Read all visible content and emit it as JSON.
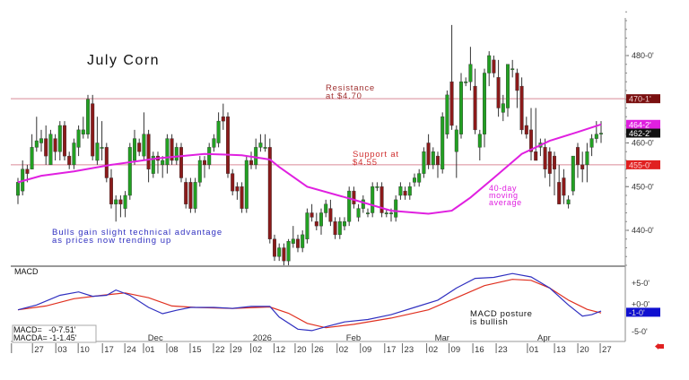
{
  "chart_data": {
    "type": "candlestick",
    "title": "July Corn",
    "ylim": [
      429,
      493
    ],
    "y_ticks": [
      {
        "v": 480,
        "label": "480-0'"
      },
      {
        "v": 460,
        "label": "460-0'"
      },
      {
        "v": 450,
        "label": "450-0'"
      },
      {
        "v": 440,
        "label": "440-0'"
      }
    ],
    "price_flags": [
      {
        "v": 470.125,
        "label": "470-1'",
        "color": "#7a1010",
        "text": "#f0d0d0"
      },
      {
        "v": 464.25,
        "label": "464-2'",
        "color": "#e020e0",
        "text": "#ffffff"
      },
      {
        "v": 462.25,
        "label": "462-2'",
        "color": "#111111",
        "text": "#ffffff"
      },
      {
        "v": 455,
        "label": "455-0'",
        "color": "#e02020",
        "text": "#ffd0d0"
      }
    ],
    "hlines": [
      {
        "v": 470.125,
        "color": "#d98a98"
      },
      {
        "v": 455,
        "color": "#d98a98"
      }
    ],
    "ohlc": [
      [
        448,
        452,
        446,
        451
      ],
      [
        449,
        456,
        448,
        454
      ],
      [
        454,
        455,
        451,
        453
      ],
      [
        454,
        462,
        454,
        459
      ],
      [
        459,
        466,
        458,
        460.5
      ],
      [
        460,
        463,
        458,
        461
      ],
      [
        461,
        464,
        455,
        457
      ],
      [
        455,
        463,
        455,
        462
      ],
      [
        461,
        462,
        456,
        458
      ],
      [
        458,
        465,
        456,
        464
      ],
      [
        464,
        465,
        456,
        457
      ],
      [
        457,
        458,
        454,
        455
      ],
      [
        455,
        461,
        454,
        460
      ],
      [
        459,
        464,
        457,
        463
      ],
      [
        462,
        466,
        461,
        463
      ],
      [
        462,
        471,
        461,
        470
      ],
      [
        469,
        471,
        456,
        457
      ],
      [
        456,
        466,
        455,
        460
      ],
      [
        459,
        465,
        456,
        459
      ],
      [
        459,
        460,
        451,
        452
      ],
      [
        452,
        454,
        445,
        446
      ],
      [
        446,
        448,
        442,
        447
      ],
      [
        447,
        448,
        443,
        446
      ],
      [
        445,
        449,
        443,
        448
      ],
      [
        448,
        460,
        447,
        459
      ],
      [
        456,
        463,
        455,
        461
      ],
      [
        460,
        461,
        457,
        458
      ],
      [
        457,
        467,
        456,
        462
      ],
      [
        462,
        463,
        451,
        454
      ],
      [
        453,
        458,
        452,
        457
      ],
      [
        457,
        458,
        453,
        456
      ],
      [
        455,
        457,
        452,
        456
      ],
      [
        455,
        462,
        453,
        461
      ],
      [
        461,
        462,
        455,
        456
      ],
      [
        456,
        460,
        455,
        459
      ],
      [
        459,
        460,
        451,
        452
      ],
      [
        451,
        452,
        445,
        446
      ],
      [
        451,
        452,
        444,
        445
      ],
      [
        445,
        452,
        444,
        451
      ],
      [
        451,
        457,
        450,
        456
      ],
      [
        456,
        457,
        452,
        455
      ],
      [
        455,
        460,
        454,
        459
      ],
      [
        459,
        462,
        458,
        461
      ],
      [
        460,
        467,
        459,
        465
      ],
      [
        466,
        469,
        463,
        465
      ],
      [
        466,
        467,
        452,
        453
      ],
      [
        453,
        454,
        448,
        449
      ],
      [
        450,
        451,
        447,
        449
      ],
      [
        450,
        451,
        444,
        445
      ],
      [
        445,
        457,
        444,
        456
      ],
      [
        456,
        458,
        454,
        455
      ],
      [
        455,
        461,
        454,
        459
      ],
      [
        459,
        462,
        458,
        460
      ],
      [
        459,
        462,
        458,
        459
      ],
      [
        459,
        461,
        437,
        438
      ],
      [
        438,
        439,
        433,
        434
      ],
      [
        434,
        437,
        433,
        436
      ],
      [
        436,
        437,
        432,
        433
      ],
      [
        433,
        438,
        432,
        437.5
      ],
      [
        437,
        441,
        436,
        438
      ],
      [
        438,
        439,
        435,
        436
      ],
      [
        436,
        440,
        435,
        439
      ],
      [
        438,
        445,
        437,
        444
      ],
      [
        444,
        446,
        442,
        443
      ],
      [
        442,
        444,
        440,
        441
      ],
      [
        441,
        445,
        439,
        444
      ],
      [
        444,
        447,
        443,
        446
      ],
      [
        445,
        447,
        441,
        442
      ],
      [
        442,
        443,
        438,
        439
      ],
      [
        439,
        443,
        438,
        442
      ],
      [
        441,
        443,
        440,
        442
      ],
      [
        442,
        450,
        441,
        449
      ],
      [
        449,
        450,
        445,
        446
      ],
      [
        443,
        446,
        442,
        445
      ],
      [
        445,
        448,
        444,
        447
      ],
      [
        444,
        445,
        443,
        444
      ],
      [
        444,
        451,
        443,
        450
      ],
      [
        450,
        451,
        449,
        450
      ],
      [
        450,
        451,
        443,
        444
      ],
      [
        444,
        445,
        443,
        444
      ],
      [
        444,
        445,
        442,
        444
      ],
      [
        443,
        448,
        442,
        447
      ],
      [
        448,
        451,
        447,
        450
      ],
      [
        449,
        450,
        447,
        448
      ],
      [
        448,
        451,
        447,
        450
      ],
      [
        451,
        453,
        450,
        452
      ],
      [
        451,
        454,
        450,
        453
      ],
      [
        453,
        459,
        452,
        458
      ],
      [
        460,
        462,
        454,
        455
      ],
      [
        455,
        459,
        454,
        458
      ],
      [
        457,
        458,
        452,
        455
      ],
      [
        454,
        467,
        453,
        466
      ],
      [
        462,
        472,
        461,
        471
      ],
      [
        474,
        487,
        463,
        464
      ],
      [
        458,
        464,
        452,
        463
      ],
      [
        462,
        476,
        461,
        474
      ],
      [
        474,
        475,
        473,
        474
      ],
      [
        474,
        482,
        472,
        478
      ],
      [
        473,
        477,
        462,
        463
      ],
      [
        459,
        463,
        456,
        462
      ],
      [
        462,
        477,
        459,
        476
      ],
      [
        476,
        481,
        473,
        480
      ],
      [
        479,
        480,
        475,
        476
      ],
      [
        475,
        479,
        466,
        468
      ],
      [
        467,
        471,
        465,
        469
      ],
      [
        468,
        478,
        466,
        478
      ],
      [
        477,
        479,
        475,
        477
      ],
      [
        476,
        477,
        468,
        472
      ],
      [
        473,
        475,
        462,
        463
      ],
      [
        464,
        466,
        461,
        462
      ],
      [
        463,
        468,
        456,
        458
      ],
      [
        458,
        468,
        456,
        456
      ],
      [
        459,
        461,
        457,
        460
      ],
      [
        459,
        461,
        452,
        454
      ],
      [
        458,
        459,
        450,
        453
      ],
      [
        457,
        458,
        448,
        454
      ],
      [
        451,
        455,
        446,
        446
      ],
      [
        452,
        454,
        446,
        448
      ],
      [
        446,
        448,
        445,
        447
      ],
      [
        449,
        457,
        448,
        457
      ],
      [
        459,
        460,
        452,
        455
      ],
      [
        455,
        458,
        451,
        454
      ],
      [
        455,
        460,
        451,
        458
      ],
      [
        459,
        462,
        457,
        461
      ],
      [
        461,
        465,
        460,
        462
      ],
      [
        462,
        465,
        460,
        462.25
      ]
    ],
    "ma40": {
      "label": "40-day moving average",
      "color": "#e020e0",
      "points": [
        [
          0,
          451
        ],
        [
          5,
          452.5
        ],
        [
          12,
          453.5
        ],
        [
          20,
          455
        ],
        [
          30,
          456.5
        ],
        [
          40,
          457.5
        ],
        [
          48,
          457.2
        ],
        [
          54,
          456.2
        ],
        [
          56,
          454.5
        ],
        [
          62,
          450
        ],
        [
          72,
          447
        ],
        [
          80,
          444.5
        ],
        [
          88,
          443.8
        ],
        [
          93,
          444.5
        ],
        [
          97,
          447.5
        ],
        [
          102,
          452
        ],
        [
          108,
          457.5
        ],
        [
          114,
          460.5
        ],
        [
          120,
          462.5
        ],
        [
          125,
          464.25
        ]
      ]
    },
    "macd": {
      "title": "MACD",
      "ylim": [
        -7,
        10
      ],
      "y_ticks": [
        {
          "v": 5,
          "label": "+5-0'"
        },
        {
          "v": 0,
          "label": "+0-0'"
        },
        {
          "v": -5,
          "label": "-5-0'"
        }
      ],
      "flag": {
        "v": -1,
        "label": "-1-0'",
        "color": "#1010d0"
      },
      "macd_line": {
        "color": "#3030c0",
        "points": [
          [
            0,
            -0.5
          ],
          [
            4,
            0.5
          ],
          [
            9,
            2.5
          ],
          [
            13,
            3.2
          ],
          [
            16,
            2.3
          ],
          [
            19,
            2.5
          ],
          [
            21,
            3.6
          ],
          [
            24,
            2.5
          ],
          [
            28,
            0
          ],
          [
            31,
            -1.3
          ],
          [
            34,
            -0.6
          ],
          [
            37,
            0
          ],
          [
            42,
            0
          ],
          [
            46,
            -0.2
          ],
          [
            50,
            0.2
          ],
          [
            54,
            0.2
          ],
          [
            56,
            -2
          ],
          [
            60,
            -4.5
          ],
          [
            63,
            -4.8
          ],
          [
            66,
            -4
          ],
          [
            70,
            -3
          ],
          [
            75,
            -2.5
          ],
          [
            80,
            -1.5
          ],
          [
            85,
            0
          ],
          [
            90,
            1.5
          ],
          [
            94,
            4
          ],
          [
            98,
            6
          ],
          [
            102,
            6.2
          ],
          [
            106,
            7
          ],
          [
            110,
            6.3
          ],
          [
            114,
            4
          ],
          [
            118,
            0.5
          ],
          [
            121,
            -1.8
          ],
          [
            123,
            -1.5
          ],
          [
            125,
            -0.75
          ]
        ]
      },
      "signal_line": {
        "color": "#e03020",
        "points": [
          [
            0,
            -0.5
          ],
          [
            6,
            0.3
          ],
          [
            12,
            1.8
          ],
          [
            18,
            2.5
          ],
          [
            23,
            3
          ],
          [
            28,
            2
          ],
          [
            33,
            0.3
          ],
          [
            38,
            0
          ],
          [
            46,
            -0.2
          ],
          [
            54,
            0.1
          ],
          [
            58,
            -1.2
          ],
          [
            62,
            -3.3
          ],
          [
            66,
            -4.2
          ],
          [
            72,
            -3.5
          ],
          [
            80,
            -2.2
          ],
          [
            88,
            -0.5
          ],
          [
            94,
            2
          ],
          [
            100,
            4.5
          ],
          [
            106,
            5.8
          ],
          [
            110,
            5.6
          ],
          [
            114,
            4
          ],
          [
            118,
            1.5
          ],
          [
            122,
            -0.4
          ],
          [
            125,
            -1.15
          ]
        ]
      },
      "readout": {
        "macd": "MACD=   -0-7.51'",
        "macda": "MACDA= -1-1.45'"
      }
    },
    "x_ticks": [
      {
        "i": -1,
        "label": ""
      },
      {
        "i": 3.5,
        "label": "27"
      },
      {
        "i": 8.5,
        "label": "03"
      },
      {
        "i": 13.3,
        "label": "10"
      },
      {
        "i": 18.5,
        "label": "17"
      },
      {
        "i": 23.3,
        "label": "24"
      },
      {
        "i": 27.3,
        "label": "01"
      },
      {
        "i": 32.3,
        "label": "08"
      },
      {
        "i": 37.3,
        "label": "15"
      },
      {
        "i": 42.3,
        "label": "22"
      },
      {
        "i": 46,
        "label": "29"
      },
      {
        "i": 50.3,
        "label": "02"
      },
      {
        "i": 55.3,
        "label": "12"
      },
      {
        "i": 59.8,
        "label": "20"
      },
      {
        "i": 63.5,
        "label": "26"
      },
      {
        "i": 68.8,
        "label": "02"
      },
      {
        "i": 73.8,
        "label": "09"
      },
      {
        "i": 79,
        "label": "17"
      },
      {
        "i": 82.8,
        "label": "23"
      },
      {
        "i": 88,
        "label": "02"
      },
      {
        "i": 92.8,
        "label": "09"
      },
      {
        "i": 97.9,
        "label": "16"
      },
      {
        "i": 102.9,
        "label": "23"
      },
      {
        "i": 109.6,
        "label": "01"
      },
      {
        "i": 115.4,
        "label": "13"
      },
      {
        "i": 120.4,
        "label": "20"
      },
      {
        "i": 125.2,
        "label": "27"
      }
    ],
    "month_labels": [
      {
        "i": 29,
        "label": "Dec"
      },
      {
        "i": 51.5,
        "label": "2026"
      },
      {
        "i": 71.5,
        "label": "Feb"
      },
      {
        "i": 90.5,
        "label": "Mar"
      },
      {
        "i": 112.5,
        "label": "Apr"
      }
    ],
    "annotations": {
      "resistance": [
        "Resistance",
        "at $4.70"
      ],
      "support": [
        "Support at",
        "$4.55"
      ],
      "ma": [
        "40-day",
        "moving",
        "average"
      ],
      "bulls": [
        "Bulls gain slight technical advantage",
        "as prices now trending up"
      ],
      "macd_note": [
        "MACD posture",
        "is bullish"
      ]
    },
    "colors": {
      "up": "#22a022",
      "down": "#8b1a1a",
      "wick": "#222222"
    }
  }
}
